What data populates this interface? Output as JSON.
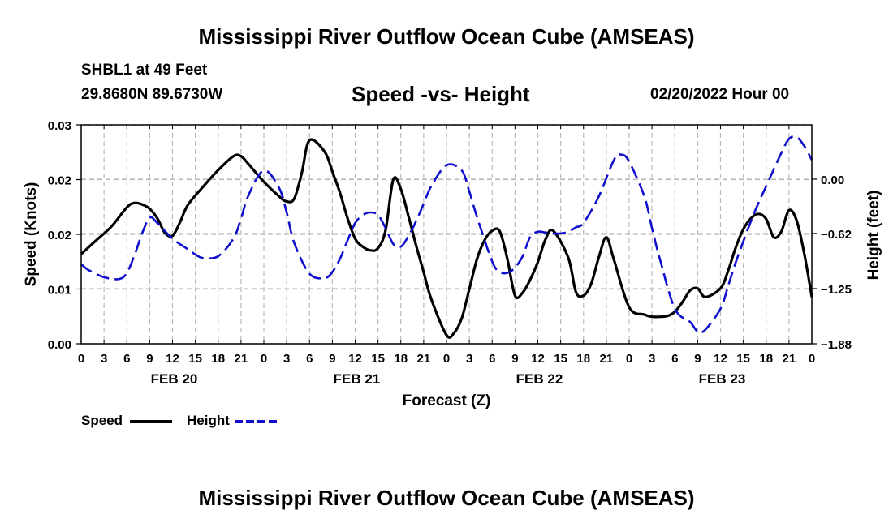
{
  "header": {
    "title": "Mississippi River Outflow Ocean Cube (AMSEAS)",
    "station": "SHBL1 at 49 Feet",
    "coordinates": "29.8680N  89.6730W",
    "subtitle": "Speed -vs- Height",
    "datetime": "02/20/2022 Hour 00"
  },
  "footer": {
    "title": "Mississippi River Outflow Ocean Cube (AMSEAS)"
  },
  "legend": {
    "speed_label": "Speed",
    "height_label": "Height"
  },
  "colors": {
    "speed": "#000000",
    "height": "#1010cc",
    "grid": "#bbbbbb"
  },
  "chart_data": {
    "type": "line",
    "title": "Speed -vs- Height",
    "xlabel": "Forecast (Z)",
    "ylabel": "Speed (Knots)",
    "y2label": "Height (feet)",
    "xlim": [
      0,
      96
    ],
    "ylim": [
      0,
      0.03
    ],
    "y2lim": [
      -1.88,
      0.62
    ],
    "x_ticks": [
      0,
      3,
      6,
      9,
      12,
      15,
      18,
      21,
      24,
      27,
      30,
      33,
      36,
      39,
      42,
      45,
      48,
      51,
      54,
      57,
      60,
      63,
      66,
      69,
      72,
      75,
      78,
      81,
      84,
      87,
      90,
      93,
      96
    ],
    "x_tick_labels": [
      "0",
      "3",
      "6",
      "9",
      "12",
      "15",
      "18",
      "21",
      "0",
      "3",
      "6",
      "9",
      "12",
      "15",
      "18",
      "21",
      "0",
      "3",
      "6",
      "9",
      "12",
      "15",
      "18",
      "21",
      "0",
      "3",
      "6",
      "9",
      "12",
      "15",
      "18",
      "21",
      "0"
    ],
    "day_labels": [
      {
        "x": 12,
        "label": "FEB 20"
      },
      {
        "x": 36,
        "label": "FEB 21"
      },
      {
        "x": 60,
        "label": "FEB 22"
      },
      {
        "x": 84,
        "label": "FEB 23"
      }
    ],
    "y_ticks": [
      0,
      0.0075,
      0.015,
      0.0225,
      0.03
    ],
    "y_tick_labels": [
      "0.00",
      "0.01",
      "0.02",
      "0.02",
      "0.03"
    ],
    "y2_ticks": [
      -1.88,
      -1.25,
      -0.62,
      0.0
    ],
    "y2_tick_labels": [
      "−1.88",
      "−1.25",
      "−0.62",
      "0.00"
    ],
    "series": [
      {
        "name": "Speed",
        "axis": "left",
        "x": [
          0,
          2,
          4,
          6,
          7,
          8,
          9,
          10,
          11,
          12,
          13,
          14,
          16,
          18,
          20,
          21,
          22,
          24,
          26,
          27,
          28,
          29,
          30,
          32,
          33,
          34,
          35,
          36,
          37,
          38,
          39,
          40,
          41,
          42,
          43,
          44,
          45,
          46,
          48,
          49,
          50,
          51,
          52,
          53,
          54,
          55,
          56,
          57,
          58,
          59,
          60,
          61,
          62,
          64,
          65,
          66,
          67,
          68,
          69,
          70,
          72,
          74,
          75,
          76,
          77,
          78,
          79,
          80,
          81,
          82,
          84,
          85,
          86,
          87,
          88,
          89,
          90,
          91,
          92,
          93,
          94,
          95,
          96
        ],
        "y": [
          0.0123,
          0.0142,
          0.0161,
          0.0187,
          0.0193,
          0.0191,
          0.0185,
          0.0172,
          0.0152,
          0.0148,
          0.0167,
          0.019,
          0.0215,
          0.0238,
          0.0257,
          0.0257,
          0.0246,
          0.0222,
          0.0202,
          0.0195,
          0.0199,
          0.0235,
          0.0279,
          0.0263,
          0.0236,
          0.0207,
          0.0172,
          0.0144,
          0.0133,
          0.0128,
          0.0131,
          0.0156,
          0.0225,
          0.0212,
          0.0175,
          0.0135,
          0.0098,
          0.0061,
          0.0012,
          0.0015,
          0.0035,
          0.0075,
          0.0116,
          0.0142,
          0.0155,
          0.0154,
          0.0116,
          0.0066,
          0.007,
          0.0088,
          0.0112,
          0.0143,
          0.0155,
          0.0118,
          0.0071,
          0.0066,
          0.0082,
          0.0118,
          0.0146,
          0.0115,
          0.005,
          0.004,
          0.0037,
          0.0037,
          0.0038,
          0.0044,
          0.0057,
          0.0073,
          0.0076,
          0.0064,
          0.0076,
          0.01,
          0.0132,
          0.0157,
          0.0172,
          0.0178,
          0.0171,
          0.0146,
          0.0154,
          0.0183,
          0.0169,
          0.0124,
          0.0064
        ]
      },
      {
        "name": "Height",
        "axis": "right",
        "x": [
          0,
          1,
          3,
          5,
          6,
          7,
          8,
          9,
          10,
          12,
          14,
          15,
          16,
          18,
          20,
          21,
          22,
          24,
          26,
          27,
          28,
          30,
          32,
          33,
          34,
          35,
          36,
          37,
          38,
          39,
          40,
          41,
          42,
          43,
          44,
          45,
          46,
          48,
          50,
          51,
          52,
          54,
          55,
          56,
          57,
          58,
          59,
          60,
          61,
          62,
          63,
          64,
          65,
          66,
          68,
          70,
          71,
          72,
          74,
          75,
          76,
          78,
          80,
          81,
          82,
          84,
          85,
          86,
          88,
          89,
          90,
          92,
          93,
          94,
          95,
          96
        ],
        "y": [
          -0.97,
          -1.04,
          -1.12,
          -1.14,
          -1.07,
          -0.87,
          -0.62,
          -0.44,
          -0.5,
          -0.68,
          -0.8,
          -0.86,
          -0.9,
          -0.88,
          -0.68,
          -0.45,
          -0.18,
          0.1,
          -0.1,
          -0.38,
          -0.73,
          -1.08,
          -1.13,
          -1.06,
          -0.91,
          -0.7,
          -0.5,
          -0.41,
          -0.38,
          -0.41,
          -0.56,
          -0.74,
          -0.77,
          -0.65,
          -0.48,
          -0.28,
          -0.08,
          0.16,
          0.1,
          -0.14,
          -0.43,
          -0.94,
          -1.06,
          -1.07,
          -1.01,
          -0.88,
          -0.66,
          -0.6,
          -0.61,
          -0.62,
          -0.62,
          -0.6,
          -0.55,
          -0.5,
          -0.2,
          0.22,
          0.28,
          0.2,
          -0.2,
          -0.56,
          -0.9,
          -1.48,
          -1.63,
          -1.74,
          -1.72,
          -1.48,
          -1.22,
          -0.95,
          -0.48,
          -0.27,
          -0.08,
          0.3,
          0.46,
          0.48,
          0.38,
          0.22
        ]
      }
    ],
    "legend": [
      "Speed",
      "Height"
    ],
    "grid": true
  }
}
